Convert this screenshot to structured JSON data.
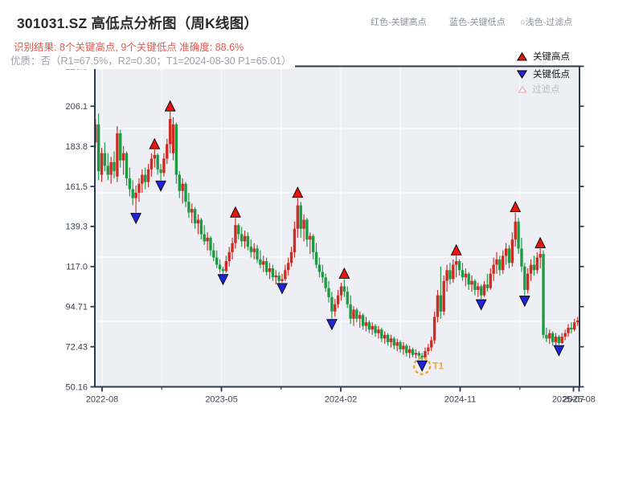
{
  "header": {
    "title": "301031.SZ 高低点分析图（周K线图）",
    "result_line": "识别结果: 8个关键高点, 9个关键低点  准确度: 88.6%",
    "quality_line": "优质：否（R1=67.5%，R2=0.30；T1=2024-08-30 P1=65.01）",
    "inline_legend": {
      "high": "红色-关键高点",
      "low": "蓝色-关键低点",
      "filtered": "○浅色-过滤点"
    }
  },
  "chart_data": {
    "type": "candlestick",
    "title": "301031.SZ 高低点分析图（周K线图）",
    "interval": "weekly",
    "x_tick_labels": [
      "2022-08",
      "2023-05",
      "2024-02",
      "2024-11",
      "2025-07",
      "2025-08"
    ],
    "y_ticks": [
      "228.3",
      "206.1",
      "183.8",
      "161.5",
      "139.3",
      "117.0",
      "94.71",
      "72.43",
      "50.16"
    ],
    "ylim": [
      50.16,
      228.3
    ],
    "grid": true,
    "legend": {
      "position": "upper-right",
      "items": [
        {
          "label": "关键高点",
          "marker": "triangle-up",
          "color": "#e8150d"
        },
        {
          "label": "关键低点",
          "marker": "triangle-down",
          "color": "#1f24d8"
        },
        {
          "label": "过滤点",
          "marker": "triangle-up-hollow",
          "color": "#e2a79f"
        }
      ]
    },
    "colors": {
      "up": "#cf2b23",
      "down": "#1e9a44",
      "marker_high": "#e8150d",
      "marker_low": "#1f24d8",
      "t1": "#f2a93b",
      "plot_bg": "#edeff5",
      "gridline": "#f8f9fc",
      "spine": "#2d3a4e"
    },
    "candles": [
      [
        186,
        199,
        183,
        196
      ],
      [
        196,
        202,
        165,
        170
      ],
      [
        168,
        183,
        164,
        180
      ],
      [
        180,
        186,
        170,
        173
      ],
      [
        173,
        180,
        165,
        168
      ],
      [
        168,
        178,
        163,
        175
      ],
      [
        175,
        181,
        166,
        170
      ],
      [
        167,
        195,
        164,
        191
      ],
      [
        191,
        193,
        172,
        176
      ],
      [
        176,
        184,
        168,
        180
      ],
      [
        180,
        181,
        162,
        166
      ],
      [
        166,
        172,
        156,
        160
      ],
      [
        160,
        165,
        151,
        155
      ],
      [
        155,
        162,
        147,
        158
      ],
      [
        158,
        166,
        153,
        163
      ],
      [
        163,
        171,
        158,
        168
      ],
      [
        168,
        172,
        160,
        164
      ],
      [
        164,
        174,
        161,
        171
      ],
      [
        171,
        180,
        167,
        177
      ],
      [
        177,
        182,
        172,
        179
      ],
      [
        179,
        180,
        168,
        171
      ],
      [
        171,
        174,
        165,
        169
      ],
      [
        169,
        180,
        167,
        177
      ],
      [
        177,
        188,
        174,
        185
      ],
      [
        185,
        203,
        180,
        199
      ],
      [
        180,
        200,
        176,
        196
      ],
      [
        196,
        197,
        163,
        168
      ],
      [
        168,
        170,
        155,
        159
      ],
      [
        159,
        166,
        152,
        163
      ],
      [
        163,
        164,
        150,
        153
      ],
      [
        153,
        158,
        144,
        147
      ],
      [
        147,
        152,
        141,
        149
      ],
      [
        149,
        150,
        138,
        141
      ],
      [
        141,
        146,
        135,
        143
      ],
      [
        143,
        144,
        132,
        135
      ],
      [
        135,
        140,
        129,
        131
      ],
      [
        131,
        136,
        126,
        133
      ],
      [
        133,
        134,
        123,
        126
      ],
      [
        126,
        130,
        120,
        122
      ],
      [
        122,
        126,
        116,
        118
      ],
      [
        118,
        121,
        113.5,
        115.5
      ],
      [
        115.5,
        117,
        113,
        114.5
      ],
      [
        114.5,
        123,
        113.5,
        120
      ],
      [
        120,
        128,
        117,
        125
      ],
      [
        125,
        133,
        121,
        130
      ],
      [
        130,
        144,
        127,
        140
      ],
      [
        140,
        141,
        132,
        135
      ],
      [
        135,
        139,
        128,
        131
      ],
      [
        131,
        137,
        127,
        134
      ],
      [
        134,
        136,
        126,
        128
      ],
      [
        128,
        132,
        122,
        125
      ],
      [
        125,
        130,
        121,
        127
      ],
      [
        127,
        129,
        119,
        121
      ],
      [
        121,
        126,
        116,
        118
      ],
      [
        118,
        123,
        114,
        120
      ],
      [
        120,
        122,
        112,
        114
      ],
      [
        114,
        119,
        110,
        116
      ],
      [
        116,
        118,
        109,
        111
      ],
      [
        111,
        115,
        107,
        112
      ],
      [
        112,
        114,
        106,
        109
      ],
      [
        109,
        113,
        108,
        110
      ],
      [
        110,
        118,
        109,
        115
      ],
      [
        115,
        122,
        112,
        119
      ],
      [
        119,
        128,
        117,
        125
      ],
      [
        125,
        142,
        122,
        138
      ],
      [
        138,
        155,
        133,
        151
      ],
      [
        151,
        153,
        133,
        138
      ],
      [
        138,
        146,
        131,
        143
      ],
      [
        143,
        144,
        128,
        132
      ],
      [
        132,
        136,
        124,
        134
      ],
      [
        134,
        135,
        121,
        125
      ],
      [
        125,
        130,
        116,
        118
      ],
      [
        118,
        122,
        111,
        114
      ],
      [
        114,
        118,
        108,
        111
      ],
      [
        111,
        113,
        103,
        105
      ],
      [
        105,
        109,
        97,
        100
      ],
      [
        100,
        103,
        88,
        92
      ],
      [
        92,
        99,
        89,
        96
      ],
      [
        96,
        104,
        94,
        101
      ],
      [
        101,
        108,
        98,
        106
      ],
      [
        106,
        110,
        100,
        103
      ],
      [
        103,
        106,
        94,
        96
      ],
      [
        96,
        101,
        85,
        88
      ],
      [
        88,
        95,
        84,
        93
      ],
      [
        93,
        94,
        86,
        88
      ],
      [
        88,
        92,
        83,
        90
      ],
      [
        90,
        91,
        82,
        84
      ],
      [
        84,
        89,
        81,
        86
      ],
      [
        86,
        87,
        80,
        82
      ],
      [
        82,
        86,
        79,
        84
      ],
      [
        84,
        85,
        78,
        80
      ],
      [
        80,
        84,
        77,
        82
      ],
      [
        82,
        83,
        75,
        77
      ],
      [
        77,
        81,
        74,
        79
      ],
      [
        79,
        80,
        73,
        75
      ],
      [
        75,
        79,
        72,
        77
      ],
      [
        77,
        78,
        71,
        73
      ],
      [
        73,
        77,
        70,
        75
      ],
      [
        75,
        76,
        69,
        71
      ],
      [
        71,
        75,
        68,
        73
      ],
      [
        73,
        74,
        67,
        69
      ],
      [
        69,
        73,
        66,
        71
      ],
      [
        71,
        72,
        66.5,
        68
      ],
      [
        68,
        71,
        66,
        69
      ],
      [
        69,
        70,
        66,
        67.5
      ],
      [
        67.5,
        69,
        65.01,
        66.5
      ],
      [
        66.5,
        72,
        66,
        70
      ],
      [
        70,
        74,
        68,
        72
      ],
      [
        72,
        78,
        70,
        76
      ],
      [
        76,
        92,
        74,
        89
      ],
      [
        89,
        104,
        86,
        101
      ],
      [
        101,
        117,
        88,
        92
      ],
      [
        92,
        112,
        90,
        109
      ],
      [
        109,
        118,
        103,
        115
      ],
      [
        115,
        119,
        107,
        110
      ],
      [
        110,
        121,
        108,
        118
      ],
      [
        118,
        123,
        111,
        120
      ],
      [
        120,
        121,
        112,
        115
      ],
      [
        115,
        119,
        109,
        111
      ],
      [
        111,
        116,
        106,
        113
      ],
      [
        113,
        114,
        104,
        107
      ],
      [
        107,
        112,
        103,
        109
      ],
      [
        109,
        110,
        101,
        104
      ],
      [
        104,
        108,
        100,
        106
      ],
      [
        106,
        107,
        99,
        101
      ],
      [
        101,
        109,
        100,
        107
      ],
      [
        107,
        113,
        103,
        105
      ],
      [
        105,
        116,
        104,
        113
      ],
      [
        113,
        122,
        109,
        118
      ],
      [
        118,
        125,
        113,
        121
      ],
      [
        121,
        123,
        112,
        115
      ],
      [
        115,
        126,
        113,
        123
      ],
      [
        123,
        130,
        118,
        127
      ],
      [
        127,
        129,
        116,
        119
      ],
      [
        119,
        136,
        117,
        132
      ],
      [
        132,
        147,
        128,
        142
      ],
      [
        142,
        144,
        124,
        127
      ],
      [
        127,
        133,
        114,
        117
      ],
      [
        117,
        119,
        101,
        104
      ],
      [
        104,
        116,
        102,
        113
      ],
      [
        113,
        121,
        109,
        118
      ],
      [
        118,
        123,
        112,
        115
      ],
      [
        115,
        125,
        113,
        122
      ],
      [
        122,
        127,
        116,
        124
      ],
      [
        124,
        126,
        77,
        79
      ],
      [
        79,
        83,
        75,
        77
      ],
      [
        77,
        82,
        74,
        80
      ],
      [
        80,
        81,
        73,
        75
      ],
      [
        75,
        80,
        72,
        78
      ],
      [
        78,
        79,
        73.5,
        74.5
      ],
      [
        74.5,
        80,
        74,
        78
      ],
      [
        78,
        82,
        76,
        80
      ],
      [
        80,
        85,
        78,
        83
      ],
      [
        83,
        86,
        80,
        82
      ],
      [
        82,
        88,
        81,
        86
      ],
      [
        86,
        89,
        84,
        87
      ]
    ],
    "key_highs": [
      {
        "week": 19,
        "price": 182
      },
      {
        "week": 24,
        "price": 203
      },
      {
        "week": 45,
        "price": 144
      },
      {
        "week": 65,
        "price": 155
      },
      {
        "week": 80,
        "price": 110
      },
      {
        "week": 116,
        "price": 123
      },
      {
        "week": 135,
        "price": 147
      },
      {
        "week": 143,
        "price": 127
      }
    ],
    "key_lows": [
      {
        "week": 13,
        "price": 147
      },
      {
        "week": 21,
        "price": 165
      },
      {
        "week": 41,
        "price": 113
      },
      {
        "week": 60,
        "price": 108
      },
      {
        "week": 76,
        "price": 88
      },
      {
        "week": 105,
        "price": 65.01
      },
      {
        "week": 124,
        "price": 99
      },
      {
        "week": 138,
        "price": 101
      },
      {
        "week": 149,
        "price": 73.5
      }
    ],
    "t1_annotation": {
      "week": 105,
      "price": 65.01,
      "label": "T1",
      "date": "2024-08-30"
    }
  }
}
